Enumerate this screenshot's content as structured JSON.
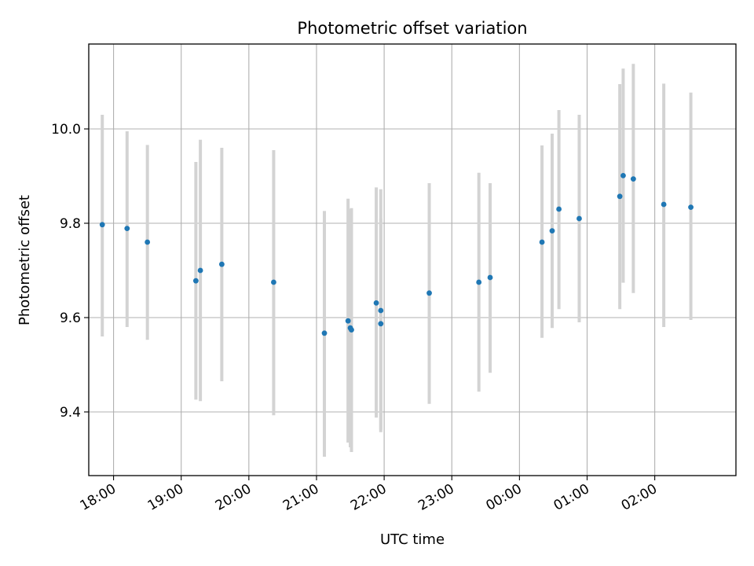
{
  "chart_data": {
    "type": "scatter",
    "title": "Photometric offset variation",
    "xlabel": "UTC time",
    "ylabel": "Photometric offset",
    "grid": true,
    "ylim": [
      9.265,
      10.18
    ],
    "y_ticks": [
      9.4,
      9.6,
      9.8,
      10.0
    ],
    "y_tick_labels": [
      "9.4",
      "9.6",
      "9.8",
      "10.0"
    ],
    "xlim": [
      "17:38",
      "03:12"
    ],
    "x_ticks": [
      "18:00",
      "19:00",
      "20:00",
      "21:00",
      "22:00",
      "23:00",
      "00:00",
      "01:00",
      "02:00"
    ],
    "x_tick_labels": [
      "18:00",
      "19:00",
      "20:00",
      "21:00",
      "22:00",
      "23:00",
      "00:00",
      "01:00",
      "02:00"
    ],
    "colors": {
      "marker": "#1f77b4",
      "errorbar": "#d3d3d3",
      "grid": "#b0b0b0"
    },
    "points": [
      {
        "x": "17:50",
        "y": 9.797,
        "y_low": 9.56,
        "y_high": 10.03
      },
      {
        "x": "18:12",
        "y": 9.789,
        "y_low": 9.58,
        "y_high": 9.995
      },
      {
        "x": "18:30",
        "y": 9.76,
        "y_low": 9.553,
        "y_high": 9.966
      },
      {
        "x": "19:13",
        "y": 9.678,
        "y_low": 9.426,
        "y_high": 9.93
      },
      {
        "x": "19:17",
        "y": 9.7,
        "y_low": 9.423,
        "y_high": 9.977
      },
      {
        "x": "19:36",
        "y": 9.713,
        "y_low": 9.465,
        "y_high": 9.96
      },
      {
        "x": "20:22",
        "y": 9.675,
        "y_low": 9.393,
        "y_high": 9.955
      },
      {
        "x": "21:07",
        "y": 9.567,
        "y_low": 9.305,
        "y_high": 9.826
      },
      {
        "x": "21:28",
        "y": 9.593,
        "y_low": 9.335,
        "y_high": 9.852
      },
      {
        "x": "21:30",
        "y": 9.578,
        "y_low": 9.325,
        "y_high": 9.83
      },
      {
        "x": "21:31",
        "y": 9.574,
        "y_low": 9.315,
        "y_high": 9.832
      },
      {
        "x": "21:53",
        "y": 9.631,
        "y_low": 9.388,
        "y_high": 9.876
      },
      {
        "x": "21:57",
        "y": 9.615,
        "y_low": 9.362,
        "y_high": 9.872
      },
      {
        "x": "21:57",
        "y": 9.587,
        "y_low": 9.357,
        "y_high": 9.81
      },
      {
        "x": "22:40",
        "y": 9.652,
        "y_low": 9.417,
        "y_high": 9.885
      },
      {
        "x": "23:24",
        "y": 9.675,
        "y_low": 9.443,
        "y_high": 9.907
      },
      {
        "x": "23:34",
        "y": 9.685,
        "y_low": 9.483,
        "y_high": 9.885
      },
      {
        "x": "00:20",
        "y": 9.76,
        "y_low": 9.557,
        "y_high": 9.965
      },
      {
        "x": "00:29",
        "y": 9.784,
        "y_low": 9.578,
        "y_high": 9.99
      },
      {
        "x": "00:35",
        "y": 9.83,
        "y_low": 9.618,
        "y_high": 10.04
      },
      {
        "x": "00:53",
        "y": 9.81,
        "y_low": 9.59,
        "y_high": 10.03
      },
      {
        "x": "01:29",
        "y": 9.857,
        "y_low": 9.618,
        "y_high": 10.095
      },
      {
        "x": "01:32",
        "y": 9.901,
        "y_low": 9.674,
        "y_high": 10.128
      },
      {
        "x": "01:41",
        "y": 9.894,
        "y_low": 9.652,
        "y_high": 10.138
      },
      {
        "x": "02:08",
        "y": 9.84,
        "y_low": 9.58,
        "y_high": 10.096
      },
      {
        "x": "02:32",
        "y": 9.834,
        "y_low": 9.595,
        "y_high": 10.077
      }
    ]
  }
}
